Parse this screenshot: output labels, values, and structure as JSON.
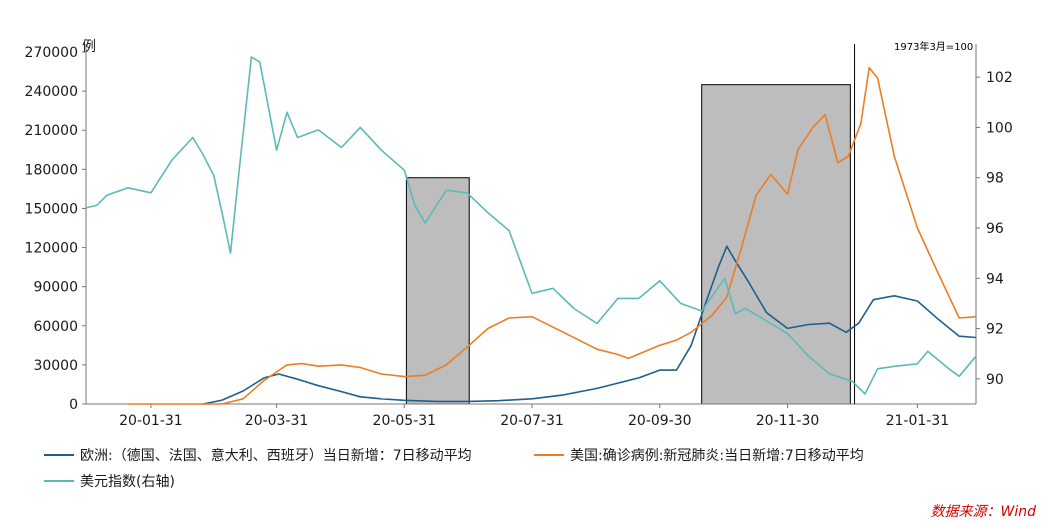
{
  "chart_data": {
    "type": "line",
    "left_axis": {
      "unit": "例",
      "ylim": [
        0,
        270000
      ],
      "ticks": [
        "0",
        "30000",
        "60000",
        "90000",
        "120000",
        "150000",
        "180000",
        "210000",
        "240000",
        "270000"
      ]
    },
    "right_axis": {
      "note": "1973年3月=100",
      "ylim": [
        89,
        103
      ],
      "ticks": [
        "90",
        "92",
        "94",
        "96",
        "98",
        "100",
        "102"
      ]
    },
    "x_axis": {
      "range": [
        "2019-12-31",
        "2021-02-28"
      ],
      "ticks": [
        {
          "label": "20-01-31",
          "date": "2020-01-31"
        },
        {
          "label": "20-03-31",
          "date": "2020-03-31"
        },
        {
          "label": "20-05-31",
          "date": "2020-05-31"
        },
        {
          "label": "20-07-31",
          "date": "2020-07-31"
        },
        {
          "label": "20-09-30",
          "date": "2020-09-30"
        },
        {
          "label": "20-11-30",
          "date": "2020-11-30"
        },
        {
          "label": "21-01-31",
          "date": "2021-01-31"
        }
      ]
    },
    "shaded_periods": [
      {
        "start": "2020-06-01",
        "end": "2020-07-01",
        "top": 98
      },
      {
        "start": "2020-10-20",
        "end": "2020-12-30",
        "top": 101.7
      }
    ],
    "vertical_marker": {
      "date": "2021-01-01"
    },
    "series": [
      {
        "name": "欧洲:（德国、法国、意大利、西班牙）当日新增：7日移动平均",
        "axis": "left",
        "color": "#1f5f8e",
        "points": [
          [
            "2020-02-25",
            0
          ],
          [
            "2020-03-05",
            3000
          ],
          [
            "2020-03-15",
            10000
          ],
          [
            "2020-03-25",
            20000
          ],
          [
            "2020-04-01",
            23000
          ],
          [
            "2020-04-10",
            19000
          ],
          [
            "2020-04-20",
            14000
          ],
          [
            "2020-05-01",
            9500
          ],
          [
            "2020-05-10",
            5500
          ],
          [
            "2020-05-20",
            4000
          ],
          [
            "2020-05-31",
            2800
          ],
          [
            "2020-06-15",
            2000
          ],
          [
            "2020-07-01",
            2000
          ],
          [
            "2020-07-15",
            2500
          ],
          [
            "2020-07-31",
            4000
          ],
          [
            "2020-08-15",
            7000
          ],
          [
            "2020-08-31",
            12000
          ],
          [
            "2020-09-10",
            16000
          ],
          [
            "2020-09-20",
            20000
          ],
          [
            "2020-09-30",
            26000
          ],
          [
            "2020-10-08",
            26000
          ],
          [
            "2020-10-15",
            45000
          ],
          [
            "2020-10-22",
            78000
          ],
          [
            "2020-10-28",
            105000
          ],
          [
            "2020-11-01",
            121000
          ],
          [
            "2020-11-05",
            110000
          ],
          [
            "2020-11-12",
            92000
          ],
          [
            "2020-11-20",
            70000
          ],
          [
            "2020-11-30",
            58000
          ],
          [
            "2020-12-10",
            61000
          ],
          [
            "2020-12-20",
            62000
          ],
          [
            "2020-12-28",
            55000
          ],
          [
            "2021-01-03",
            62000
          ],
          [
            "2021-01-10",
            80000
          ],
          [
            "2021-01-20",
            83000
          ],
          [
            "2021-01-31",
            79000
          ],
          [
            "2021-02-10",
            65000
          ],
          [
            "2021-02-20",
            52000
          ],
          [
            "2021-02-28",
            51000
          ]
        ]
      },
      {
        "name": "美国:确诊病例:新冠肺炎:当日新增:7日移动平均",
        "axis": "left",
        "color": "#ed7d22",
        "points": [
          [
            "2020-01-20",
            0
          ],
          [
            "2020-03-05",
            0
          ],
          [
            "2020-03-15",
            4000
          ],
          [
            "2020-03-25",
            18000
          ],
          [
            "2020-04-05",
            30000
          ],
          [
            "2020-04-12",
            31000
          ],
          [
            "2020-04-20",
            29000
          ],
          [
            "2020-05-01",
            30000
          ],
          [
            "2020-05-10",
            28000
          ],
          [
            "2020-05-20",
            23000
          ],
          [
            "2020-05-31",
            21000
          ],
          [
            "2020-06-10",
            22000
          ],
          [
            "2020-06-20",
            30000
          ],
          [
            "2020-07-01",
            45000
          ],
          [
            "2020-07-10",
            58000
          ],
          [
            "2020-07-20",
            66000
          ],
          [
            "2020-07-31",
            67000
          ],
          [
            "2020-08-15",
            55000
          ],
          [
            "2020-08-31",
            42000
          ],
          [
            "2020-09-10",
            38000
          ],
          [
            "2020-09-15",
            35000
          ],
          [
            "2020-09-30",
            45000
          ],
          [
            "2020-10-08",
            49000
          ],
          [
            "2020-10-15",
            55000
          ],
          [
            "2020-10-25",
            68000
          ],
          [
            "2020-11-01",
            82000
          ],
          [
            "2020-11-08",
            120000
          ],
          [
            "2020-11-15",
            160000
          ],
          [
            "2020-11-22",
            176000
          ],
          [
            "2020-11-30",
            161000
          ],
          [
            "2020-12-05",
            195000
          ],
          [
            "2020-12-12",
            212000
          ],
          [
            "2020-12-18",
            222000
          ],
          [
            "2020-12-24",
            185000
          ],
          [
            "2020-12-29",
            190000
          ],
          [
            "2021-01-04",
            215000
          ],
          [
            "2021-01-08",
            258000
          ],
          [
            "2021-01-12",
            250000
          ],
          [
            "2021-01-20",
            190000
          ],
          [
            "2021-01-31",
            135000
          ],
          [
            "2021-02-10",
            100000
          ],
          [
            "2021-02-20",
            66000
          ],
          [
            "2021-02-28",
            67000
          ]
        ]
      },
      {
        "name": "美元指数(右轴)",
        "axis": "right",
        "color": "#5bbab8",
        "points": [
          [
            "2019-12-31",
            96.8
          ],
          [
            "2020-01-05",
            96.9
          ],
          [
            "2020-01-10",
            97.3
          ],
          [
            "2020-01-20",
            97.6
          ],
          [
            "2020-01-31",
            97.4
          ],
          [
            "2020-02-10",
            98.7
          ],
          [
            "2020-02-20",
            99.6
          ],
          [
            "2020-02-25",
            98.9
          ],
          [
            "2020-03-01",
            98.1
          ],
          [
            "2020-03-05",
            96.6
          ],
          [
            "2020-03-09",
            95.0
          ],
          [
            "2020-03-13",
            98.2
          ],
          [
            "2020-03-19",
            102.8
          ],
          [
            "2020-03-23",
            102.6
          ],
          [
            "2020-03-31",
            99.1
          ],
          [
            "2020-04-05",
            100.6
          ],
          [
            "2020-04-10",
            99.6
          ],
          [
            "2020-04-20",
            99.9
          ],
          [
            "2020-05-01",
            99.2
          ],
          [
            "2020-05-10",
            100.0
          ],
          [
            "2020-05-20",
            99.1
          ],
          [
            "2020-05-31",
            98.3
          ],
          [
            "2020-06-05",
            96.9
          ],
          [
            "2020-06-10",
            96.2
          ],
          [
            "2020-06-20",
            97.5
          ],
          [
            "2020-06-30",
            97.4
          ],
          [
            "2020-07-10",
            96.6
          ],
          [
            "2020-07-20",
            95.9
          ],
          [
            "2020-07-31",
            93.4
          ],
          [
            "2020-08-10",
            93.6
          ],
          [
            "2020-08-20",
            92.8
          ],
          [
            "2020-08-31",
            92.2
          ],
          [
            "2020-09-10",
            93.2
          ],
          [
            "2020-09-20",
            93.2
          ],
          [
            "2020-09-30",
            93.9
          ],
          [
            "2020-10-10",
            93.0
          ],
          [
            "2020-10-20",
            92.7
          ],
          [
            "2020-10-31",
            94.0
          ],
          [
            "2020-11-05",
            92.6
          ],
          [
            "2020-11-10",
            92.8
          ],
          [
            "2020-11-20",
            92.3
          ],
          [
            "2020-11-30",
            91.8
          ],
          [
            "2020-12-10",
            90.9
          ],
          [
            "2020-12-20",
            90.2
          ],
          [
            "2020-12-31",
            89.9
          ],
          [
            "2021-01-06",
            89.4
          ],
          [
            "2021-01-12",
            90.4
          ],
          [
            "2021-01-20",
            90.5
          ],
          [
            "2021-01-31",
            90.6
          ],
          [
            "2021-02-05",
            91.1
          ],
          [
            "2021-02-15",
            90.4
          ],
          [
            "2021-02-20",
            90.1
          ],
          [
            "2021-02-28",
            90.9
          ]
        ]
      }
    ],
    "legend": [
      {
        "label": "欧洲:（德国、法国、意大利、西班牙）当日新增：7日移动平均",
        "color": "#1f5f8e"
      },
      {
        "label": "美国:确诊病例:新冠肺炎:当日新增:7日移动平均",
        "color": "#ed7d22"
      },
      {
        "label": "美元指数(右轴)",
        "color": "#5bbab8"
      }
    ],
    "source": "数据来源：Wind"
  }
}
